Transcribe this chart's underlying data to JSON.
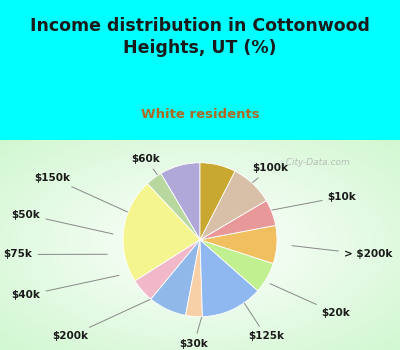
{
  "title": "Income distribution in Cottonwood\nHeights, UT (%)",
  "subtitle": "White residents",
  "bg_cyan": "#00ffff",
  "labels": [
    "$100k",
    "$10k",
    "> $200k",
    "$20k",
    "$125k",
    "$30k",
    "$200k",
    "$40k",
    "$75k",
    "$50k",
    "$150k",
    "$60k"
  ],
  "sizes": [
    8.5,
    3.5,
    22.0,
    5.0,
    8.0,
    3.5,
    13.0,
    6.5,
    8.0,
    5.5,
    9.0,
    7.5
  ],
  "colors": [
    "#b0a8d8",
    "#b8d8a0",
    "#f5f590",
    "#f0b8c8",
    "#90b8e8",
    "#f8d0a8",
    "#90b8f0",
    "#c0f090",
    "#f0c060",
    "#e89898",
    "#d8c0a8",
    "#c8a830"
  ],
  "watermark": "  City-Data.com",
  "label_fontsize": 7.5,
  "title_fontsize": 12.5,
  "subtitle_fontsize": 9.5,
  "startangle": 90,
  "title_color": "#1a1a1a",
  "subtitle_color": "#b06820",
  "label_color": "#1a1a1a",
  "line_color": "#888888"
}
